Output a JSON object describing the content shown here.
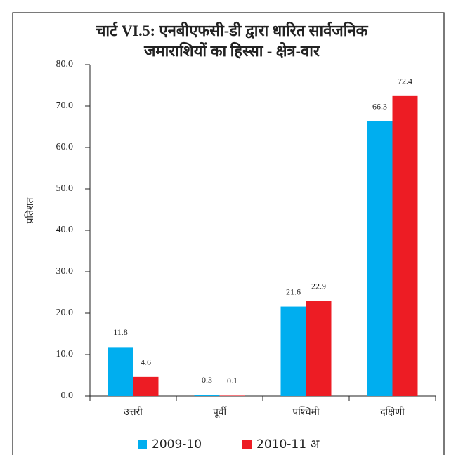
{
  "chart_data": {
    "type": "bar",
    "title_lines": [
      "चार्ट VI.5: एनबीएफसी-डी द्वारा धारित सार्वजनिक",
      "जमाराशियों का हिस्सा - क्षेत्र-वार"
    ],
    "y_label": "प्रतिशत",
    "categories": [
      "उत्तरी",
      "पूर्वी",
      "पश्चिमी",
      "दक्षिणी"
    ],
    "series": [
      {
        "name": "2009-10",
        "color": "#00aeef",
        "values": [
          11.8,
          0.3,
          21.6,
          66.3
        ]
      },
      {
        "name": "2010-11 अ",
        "color": "#ed1c24",
        "values": [
          4.6,
          0.1,
          22.9,
          72.4
        ]
      }
    ],
    "ylim": [
      0,
      80
    ],
    "yticks": [
      {
        "value": 0,
        "label": "0.0"
      },
      {
        "value": 10,
        "label": "10.0"
      },
      {
        "value": 20,
        "label": "20.0"
      },
      {
        "value": 30,
        "label": "30.0"
      },
      {
        "value": 40,
        "label": "40.0"
      },
      {
        "value": 50,
        "label": "50.0"
      },
      {
        "value": 60,
        "label": "60.0"
      },
      {
        "value": 70,
        "label": "70.0"
      },
      {
        "value": 80,
        "label": "80.0"
      }
    ],
    "grid": false,
    "legend": "bottom"
  }
}
